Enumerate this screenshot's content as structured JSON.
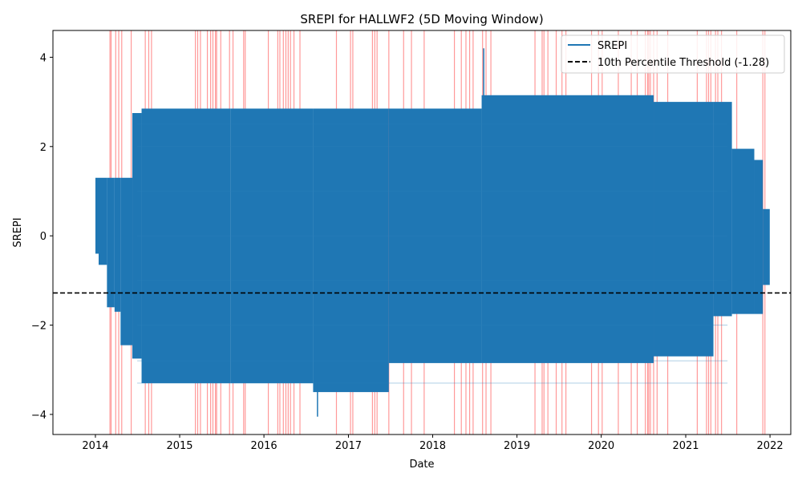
{
  "chart_data": {
    "type": "line",
    "title": "SREPI for HALLWF2 (5D Moving Window)",
    "xlabel": "Date",
    "ylabel": "SREPI",
    "xlim": [
      "2013-07-01",
      "2022-04-01"
    ],
    "ylim": [
      -4.45,
      4.6
    ],
    "x_ticks": [
      "2014",
      "2015",
      "2016",
      "2017",
      "2018",
      "2019",
      "2020",
      "2021",
      "2022"
    ],
    "y_ticks": [
      -4,
      -2,
      0,
      2,
      4
    ],
    "grid": false,
    "legend_position": "top-right",
    "colors": {
      "series": "#1f77b4",
      "threshold": "#000000",
      "drought_band": "#ff0000"
    },
    "series": [
      {
        "name": "SREPI",
        "color": "#1f77b4",
        "envelope": [
          {
            "start": "2014-01-01",
            "end": "2014-01-15",
            "low": -0.4,
            "high": 1.3
          },
          {
            "start": "2014-01-15",
            "end": "2014-02-20",
            "low": -0.65,
            "high": 1.3
          },
          {
            "start": "2014-02-20",
            "end": "2014-03-25",
            "low": -1.6,
            "high": 1.3
          },
          {
            "start": "2014-03-25",
            "end": "2014-04-20",
            "low": -1.7,
            "high": 1.3
          },
          {
            "start": "2014-04-20",
            "end": "2014-06-10",
            "low": -2.45,
            "high": 1.3
          },
          {
            "start": "2014-06-10",
            "end": "2014-07-20",
            "low": -2.75,
            "high": 2.75
          },
          {
            "start": "2014-07-20",
            "end": "2015-08-10",
            "low": -3.3,
            "high": 2.85
          },
          {
            "start": "2015-08-10",
            "end": "2016-08-01",
            "low": -3.3,
            "high": 2.85
          },
          {
            "start": "2016-08-01",
            "end": "2017-06-25",
            "low": -3.5,
            "high": 2.85
          },
          {
            "start": "2017-06-25",
            "end": "2018-08-01",
            "low": -2.85,
            "high": 2.85
          },
          {
            "start": "2018-08-01",
            "end": "2020-08-15",
            "low": -2.85,
            "high": 3.15
          },
          {
            "start": "2020-08-15",
            "end": "2021-05-01",
            "low": -2.7,
            "high": 3.0
          },
          {
            "start": "2021-05-01",
            "end": "2021-07-20",
            "low": -1.8,
            "high": 3.0
          },
          {
            "start": "2021-07-20",
            "end": "2021-10-25",
            "low": -1.75,
            "high": 1.95
          },
          {
            "start": "2021-10-25",
            "end": "2021-12-01",
            "low": -1.75,
            "high": 1.7
          },
          {
            "start": "2021-12-01",
            "end": "2021-12-31",
            "low": -1.1,
            "high": 0.6
          }
        ],
        "spikes": [
          {
            "date": "2018-08-10",
            "value": 4.2
          },
          {
            "date": "2016-08-20",
            "value": -4.05
          }
        ]
      },
      {
        "name": "10th Percentile Threshold (-1.28)",
        "color": "#000000",
        "style": "dashed",
        "value": -1.28
      }
    ],
    "drought_periods": [
      "2014-03-05",
      "2014-03-10",
      "2014-03-30",
      "2014-04-12",
      "2014-04-25",
      "2014-06-05",
      "2014-08-05",
      "2014-08-20",
      "2014-09-01",
      "2015-03-10",
      "2015-03-20",
      "2015-04-01",
      "2015-05-01",
      "2015-05-15",
      "2015-05-25",
      "2015-06-05",
      "2015-06-10",
      "2015-06-28",
      "2015-08-05",
      "2015-08-20",
      "2015-10-05",
      "2015-10-12",
      "2016-01-20",
      "2016-03-01",
      "2016-03-10",
      "2016-03-25",
      "2016-04-05",
      "2016-04-15",
      "2016-04-25",
      "2016-05-10",
      "2016-06-05",
      "2016-11-10",
      "2017-01-10",
      "2017-01-20",
      "2017-04-15",
      "2017-04-25",
      "2017-05-05",
      "2017-06-25",
      "2017-08-28",
      "2017-10-01",
      "2017-11-25",
      "2018-04-05",
      "2018-05-05",
      "2018-05-25",
      "2018-06-10",
      "2018-06-25",
      "2018-08-05",
      "2018-08-20",
      "2018-09-10",
      "2019-03-20",
      "2019-04-20",
      "2019-04-28",
      "2019-05-15",
      "2019-06-20",
      "2019-07-15",
      "2019-08-01",
      "2019-11-20",
      "2019-12-20",
      "2020-01-05",
      "2020-03-15",
      "2020-05-10",
      "2020-06-05",
      "2020-07-10",
      "2020-07-20",
      "2020-07-25",
      "2020-08-01",
      "2020-08-15",
      "2020-08-30",
      "2020-10-15",
      "2021-02-20",
      "2021-04-01",
      "2021-04-10",
      "2021-04-20",
      "2021-05-10",
      "2021-05-20",
      "2021-06-05",
      "2021-08-10",
      "2021-12-01",
      "2021-12-10"
    ]
  }
}
